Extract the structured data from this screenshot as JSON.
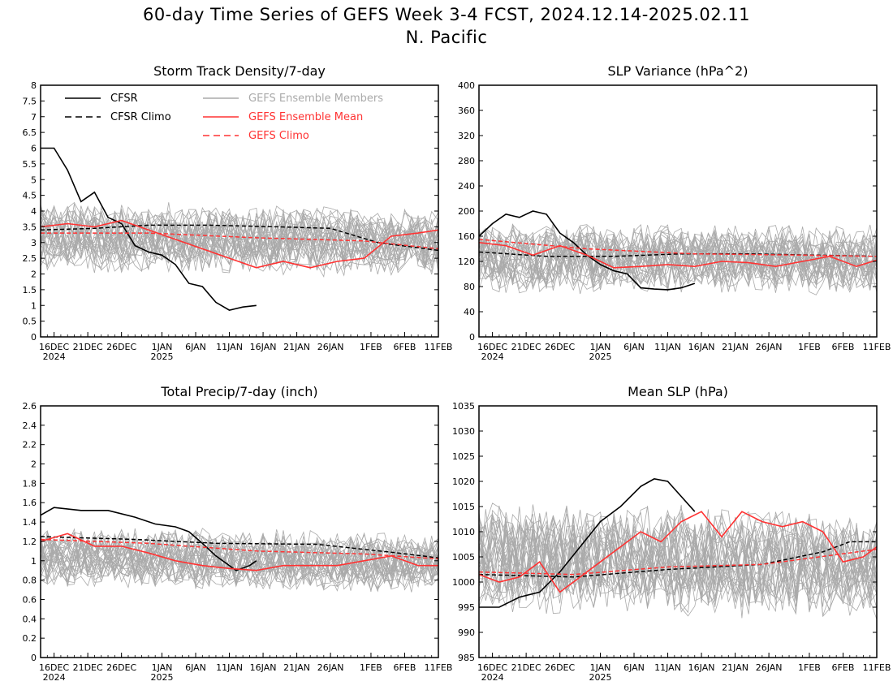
{
  "figure": {
    "title_line1": "60-day Time Series of GEFS Week 3-4 FCST, 2024.12.14-2025.02.11",
    "title_line2": "N. Pacific"
  },
  "colors": {
    "cfsr": "#000000",
    "members": "#aaaaaa",
    "mean": "#ff3333",
    "gefs_climo": "#ff3333"
  },
  "legend": {
    "cfsr": "CFSR",
    "cfsr_climo": "CFSR Climo",
    "members": "GEFS Ensemble Members",
    "mean": "GEFS Ensemble Mean",
    "gefs_climo": "GEFS Climo"
  },
  "x_axis": {
    "start_date": "2024-12-14",
    "end_date": "2025-02-11",
    "ticks": [
      {
        "date": "2024-12-16",
        "label": "16DEC",
        "sub": "2024"
      },
      {
        "date": "2024-12-21",
        "label": "21DEC",
        "sub": ""
      },
      {
        "date": "2024-12-26",
        "label": "26DEC",
        "sub": ""
      },
      {
        "date": "2025-01-01",
        "label": "1JAN",
        "sub": "2025"
      },
      {
        "date": "2025-01-06",
        "label": "6JAN",
        "sub": ""
      },
      {
        "date": "2025-01-11",
        "label": "11JAN",
        "sub": ""
      },
      {
        "date": "2025-01-16",
        "label": "16JAN",
        "sub": ""
      },
      {
        "date": "2025-01-21",
        "label": "21JAN",
        "sub": ""
      },
      {
        "date": "2025-01-26",
        "label": "26JAN",
        "sub": ""
      },
      {
        "date": "2025-02-01",
        "label": "1FEB",
        "sub": ""
      },
      {
        "date": "2025-02-06",
        "label": "6FEB",
        "sub": ""
      },
      {
        "date": "2025-02-11",
        "label": "11FEB",
        "sub": ""
      }
    ]
  },
  "chart_data": [
    {
      "type": "line",
      "title": "Storm Track Density/7-day",
      "ylim": [
        0,
        8
      ],
      "yticks": [
        "0",
        "0.5",
        "1",
        "1.5",
        "2",
        "2.5",
        "3",
        "3.5",
        "4",
        "4.5",
        "5",
        "5.5",
        "6",
        "6.5",
        "7",
        "7.5",
        "8"
      ],
      "series": [
        {
          "name": "CFSR",
          "style": "solid",
          "x": [
            "2024-12-14",
            "2024-12-16",
            "2024-12-18",
            "2024-12-20",
            "2024-12-22",
            "2024-12-24",
            "2024-12-26",
            "2024-12-28",
            "2024-12-30",
            "2025-01-01",
            "2025-01-03",
            "2025-01-05",
            "2025-01-07",
            "2025-01-09",
            "2025-01-11",
            "2025-01-13",
            "2025-01-15"
          ],
          "y": [
            6.0,
            6.0,
            5.3,
            4.3,
            4.6,
            3.8,
            3.6,
            2.9,
            2.7,
            2.6,
            2.3,
            1.7,
            1.6,
            1.1,
            0.85,
            0.95,
            1.0
          ]
        },
        {
          "name": "CFSR Climo",
          "style": "dashed",
          "x": [
            "2024-12-14",
            "2024-12-22",
            "2024-12-30",
            "2025-01-08",
            "2025-01-18",
            "2025-01-26",
            "2025-02-02",
            "2025-02-11"
          ],
          "y": [
            3.4,
            3.45,
            3.55,
            3.55,
            3.5,
            3.45,
            3.0,
            2.75
          ]
        },
        {
          "name": "GEFS Ensemble Mean",
          "style": "solid",
          "x": [
            "2024-12-14",
            "2024-12-18",
            "2024-12-22",
            "2024-12-26",
            "2024-12-30",
            "2025-01-03",
            "2025-01-07",
            "2025-01-11",
            "2025-01-15",
            "2025-01-19",
            "2025-01-23",
            "2025-01-27",
            "2025-01-31",
            "2025-02-04",
            "2025-02-08",
            "2025-02-11"
          ],
          "y": [
            3.5,
            3.6,
            3.5,
            3.7,
            3.4,
            3.1,
            2.8,
            2.5,
            2.2,
            2.4,
            2.2,
            2.4,
            2.5,
            3.2,
            3.3,
            3.4
          ]
        },
        {
          "name": "GEFS Climo",
          "style": "dashed",
          "x": [
            "2024-12-14",
            "2024-12-30",
            "2025-01-15",
            "2025-01-31",
            "2025-02-11"
          ],
          "y": [
            3.3,
            3.3,
            3.15,
            3.05,
            2.8
          ]
        }
      ],
      "members": {
        "count": 30,
        "center": 3.2,
        "spread": 1.0,
        "end_center": 3.0
      }
    },
    {
      "type": "line",
      "title": "SLP Variance (hPa^2)",
      "ylim": [
        0,
        400
      ],
      "yticks": [
        "0",
        "40",
        "80",
        "120",
        "160",
        "200",
        "240",
        "280",
        "320",
        "360",
        "400"
      ],
      "series": [
        {
          "name": "CFSR",
          "style": "solid",
          "x": [
            "2024-12-14",
            "2024-12-16",
            "2024-12-18",
            "2024-12-20",
            "2024-12-22",
            "2024-12-24",
            "2024-12-26",
            "2024-12-28",
            "2024-12-30",
            "2025-01-01",
            "2025-01-03",
            "2025-01-05",
            "2025-01-07",
            "2025-01-09",
            "2025-01-11",
            "2025-01-13",
            "2025-01-15"
          ],
          "y": [
            160,
            180,
            195,
            190,
            200,
            195,
            165,
            150,
            130,
            115,
            105,
            100,
            78,
            76,
            75,
            78,
            85
          ]
        },
        {
          "name": "CFSR Climo",
          "style": "dashed",
          "x": [
            "2024-12-14",
            "2024-12-24",
            "2025-01-03",
            "2025-01-13",
            "2025-01-23",
            "2025-02-02",
            "2025-02-11"
          ],
          "y": [
            135,
            128,
            128,
            132,
            132,
            130,
            128
          ]
        },
        {
          "name": "GEFS Ensemble Mean",
          "style": "solid",
          "x": [
            "2024-12-14",
            "2024-12-18",
            "2024-12-22",
            "2024-12-26",
            "2024-12-30",
            "2025-01-03",
            "2025-01-07",
            "2025-01-11",
            "2025-01-15",
            "2025-01-19",
            "2025-01-23",
            "2025-01-27",
            "2025-01-31",
            "2025-02-04",
            "2025-02-08",
            "2025-02-11"
          ],
          "y": [
            150,
            145,
            130,
            145,
            130,
            110,
            112,
            115,
            112,
            120,
            118,
            112,
            120,
            128,
            112,
            122
          ]
        },
        {
          "name": "GEFS Climo",
          "style": "dashed",
          "x": [
            "2024-12-14",
            "2024-12-30",
            "2025-01-15",
            "2025-01-31",
            "2025-02-11"
          ],
          "y": [
            155,
            140,
            132,
            130,
            128
          ]
        }
      ],
      "members": {
        "count": 30,
        "center": 125,
        "spread": 50,
        "end_center": 122
      }
    },
    {
      "type": "line",
      "title": "Total Precip/7-day (inch)",
      "ylim": [
        0,
        2.6
      ],
      "yticks": [
        "0",
        "0.2",
        "0.4",
        "0.6",
        "0.8",
        "1",
        "1.2",
        "1.4",
        "1.6",
        "1.8",
        "2",
        "2.2",
        "2.4",
        "2.6"
      ],
      "series": [
        {
          "name": "CFSR",
          "style": "solid",
          "x": [
            "2024-12-14",
            "2024-12-16",
            "2024-12-20",
            "2024-12-24",
            "2024-12-28",
            "2024-12-31",
            "2025-01-03",
            "2025-01-05",
            "2025-01-07",
            "2025-01-09",
            "2025-01-12",
            "2025-01-14",
            "2025-01-15"
          ],
          "y": [
            1.47,
            1.55,
            1.52,
            1.52,
            1.45,
            1.38,
            1.35,
            1.3,
            1.18,
            1.05,
            0.9,
            0.95,
            1.0
          ]
        },
        {
          "name": "CFSR Climo",
          "style": "dashed",
          "x": [
            "2024-12-14",
            "2024-12-28",
            "2025-01-09",
            "2025-01-24",
            "2025-02-05",
            "2025-02-11"
          ],
          "y": [
            1.25,
            1.22,
            1.18,
            1.17,
            1.08,
            1.03
          ]
        },
        {
          "name": "GEFS Ensemble Mean",
          "style": "solid",
          "x": [
            "2024-12-14",
            "2024-12-18",
            "2024-12-22",
            "2024-12-26",
            "2024-12-30",
            "2025-01-03",
            "2025-01-07",
            "2025-01-11",
            "2025-01-15",
            "2025-01-19",
            "2025-01-23",
            "2025-01-27",
            "2025-01-31",
            "2025-02-04",
            "2025-02-08",
            "2025-02-11"
          ],
          "y": [
            1.2,
            1.28,
            1.15,
            1.15,
            1.08,
            1.0,
            0.95,
            0.92,
            0.9,
            0.95,
            0.95,
            0.95,
            1.0,
            1.05,
            0.95,
            0.95
          ]
        },
        {
          "name": "GEFS Climo",
          "style": "dashed",
          "x": [
            "2024-12-14",
            "2024-12-30",
            "2025-01-15",
            "2025-01-31",
            "2025-02-11"
          ],
          "y": [
            1.22,
            1.18,
            1.1,
            1.07,
            1.02
          ]
        }
      ],
      "members": {
        "count": 30,
        "center": 1.05,
        "spread": 0.28,
        "end_center": 0.98
      }
    },
    {
      "type": "line",
      "title": "Mean SLP (hPa)",
      "ylim": [
        985,
        1035
      ],
      "yticks": [
        "985",
        "990",
        "995",
        "1000",
        "1005",
        "1010",
        "1015",
        "1020",
        "1025",
        "1030",
        "1035"
      ],
      "series": [
        {
          "name": "CFSR",
          "style": "solid",
          "x": [
            "2024-12-14",
            "2024-12-17",
            "2024-12-20",
            "2024-12-23",
            "2024-12-26",
            "2024-12-29",
            "2025-01-01",
            "2025-01-04",
            "2025-01-07",
            "2025-01-09",
            "2025-01-11",
            "2025-01-13",
            "2025-01-15"
          ],
          "y": [
            995,
            995,
            997,
            998,
            1002,
            1007,
            1012,
            1015,
            1019,
            1020.5,
            1020,
            1017,
            1014
          ]
        },
        {
          "name": "CFSR Climo",
          "style": "dashed",
          "x": [
            "2024-12-14",
            "2024-12-28",
            "2025-01-11",
            "2025-01-25",
            "2025-02-03",
            "2025-02-07",
            "2025-02-11"
          ],
          "y": [
            1001.5,
            1001,
            1002.5,
            1003.5,
            1006,
            1008,
            1008
          ]
        },
        {
          "name": "GEFS Ensemble Mean",
          "style": "solid",
          "x": [
            "2024-12-14",
            "2024-12-17",
            "2024-12-20",
            "2024-12-23",
            "2024-12-26",
            "2024-12-29",
            "2025-01-01",
            "2025-01-04",
            "2025-01-07",
            "2025-01-10",
            "2025-01-13",
            "2025-01-16",
            "2025-01-19",
            "2025-01-22",
            "2025-01-25",
            "2025-01-28",
            "2025-01-31",
            "2025-02-03",
            "2025-02-06",
            "2025-02-09",
            "2025-02-11"
          ],
          "y": [
            1001.5,
            1000,
            1001,
            1004,
            998,
            1001,
            1004,
            1007,
            1010,
            1008,
            1012,
            1014,
            1009,
            1014,
            1012,
            1011,
            1012,
            1010,
            1004,
            1005,
            1007
          ]
        },
        {
          "name": "GEFS Climo",
          "style": "dashed",
          "x": [
            "2024-12-14",
            "2024-12-28",
            "2025-01-11",
            "2025-01-25",
            "2025-02-11"
          ],
          "y": [
            1002,
            1001.5,
            1003,
            1003.5,
            1006.5
          ]
        }
      ],
      "members": {
        "count": 30,
        "center": 1005,
        "spread": 10,
        "end_center": 1003
      }
    }
  ]
}
